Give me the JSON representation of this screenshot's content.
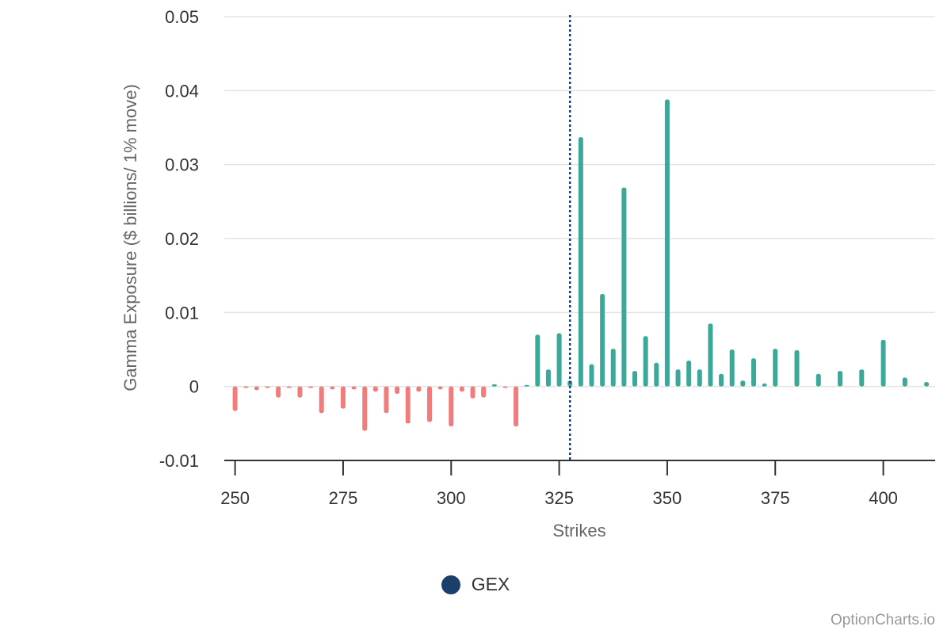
{
  "colors": {
    "positive": "#3aa99a",
    "negative": "#f07c7c",
    "spot_line": "#1a3f6b",
    "legend_marker": "#1a3f6b",
    "grid": "#e3e3e3",
    "axis": "#333333"
  },
  "legend": {
    "label": "GEX"
  },
  "credit": "OptionCharts.io",
  "chart_data": {
    "type": "bar",
    "xlabel": "Strikes",
    "ylabel": "Gamma Exposure ($ billions/ 1% move)",
    "xlim": [
      247.5,
      412
    ],
    "ylim": [
      -0.01,
      0.05
    ],
    "xticks": [
      250,
      275,
      300,
      325,
      350,
      375,
      400
    ],
    "yticks": [
      -0.01,
      0,
      0.01,
      0.02,
      0.03,
      0.04,
      0.05
    ],
    "ytick_labels": [
      "-0.01",
      "0",
      "0.01",
      "0.02",
      "0.03",
      "0.04",
      "0.05"
    ],
    "grid": true,
    "legend_position": "bottom-center",
    "spot_price": 327.5,
    "series": [
      {
        "name": "GEX",
        "x": [
          250,
          252.5,
          255,
          257.5,
          260,
          262.5,
          265,
          267.5,
          270,
          272.5,
          275,
          277.5,
          280,
          282.5,
          285,
          287.5,
          290,
          292.5,
          295,
          297.5,
          300,
          302.5,
          305,
          307.5,
          310,
          312.5,
          315,
          317.5,
          320,
          322.5,
          325,
          327.5,
          330,
          332.5,
          335,
          337.5,
          340,
          342.5,
          345,
          347.5,
          350,
          352.5,
          355,
          357.5,
          360,
          362.5,
          365,
          367.5,
          370,
          372.5,
          375,
          380,
          385,
          390,
          395,
          400,
          405,
          410
        ],
        "values": [
          -0.0033,
          -0.0002,
          -0.0005,
          -0.0002,
          -0.0015,
          -0.0002,
          -0.0015,
          -0.0002,
          -0.0036,
          -0.0004,
          -0.003,
          -0.0004,
          -0.006,
          -0.0007,
          -0.0036,
          -0.001,
          -0.005,
          -0.0007,
          -0.0048,
          -0.0004,
          -0.0054,
          -0.0007,
          -0.0016,
          -0.0015,
          0.0003,
          -0.0002,
          -0.0054,
          0.0002,
          0.007,
          0.0023,
          0.0072,
          0.0008,
          0.0337,
          0.003,
          0.0125,
          0.0051,
          0.0269,
          0.0021,
          0.0068,
          0.0032,
          0.0388,
          0.0023,
          0.0035,
          0.0023,
          0.0085,
          0.0017,
          0.005,
          0.0008,
          0.0038,
          0.0004,
          0.0051,
          0.0049,
          0.0017,
          0.0021,
          0.0023,
          0.0063,
          0.0012,
          0.0006
        ]
      }
    ]
  }
}
